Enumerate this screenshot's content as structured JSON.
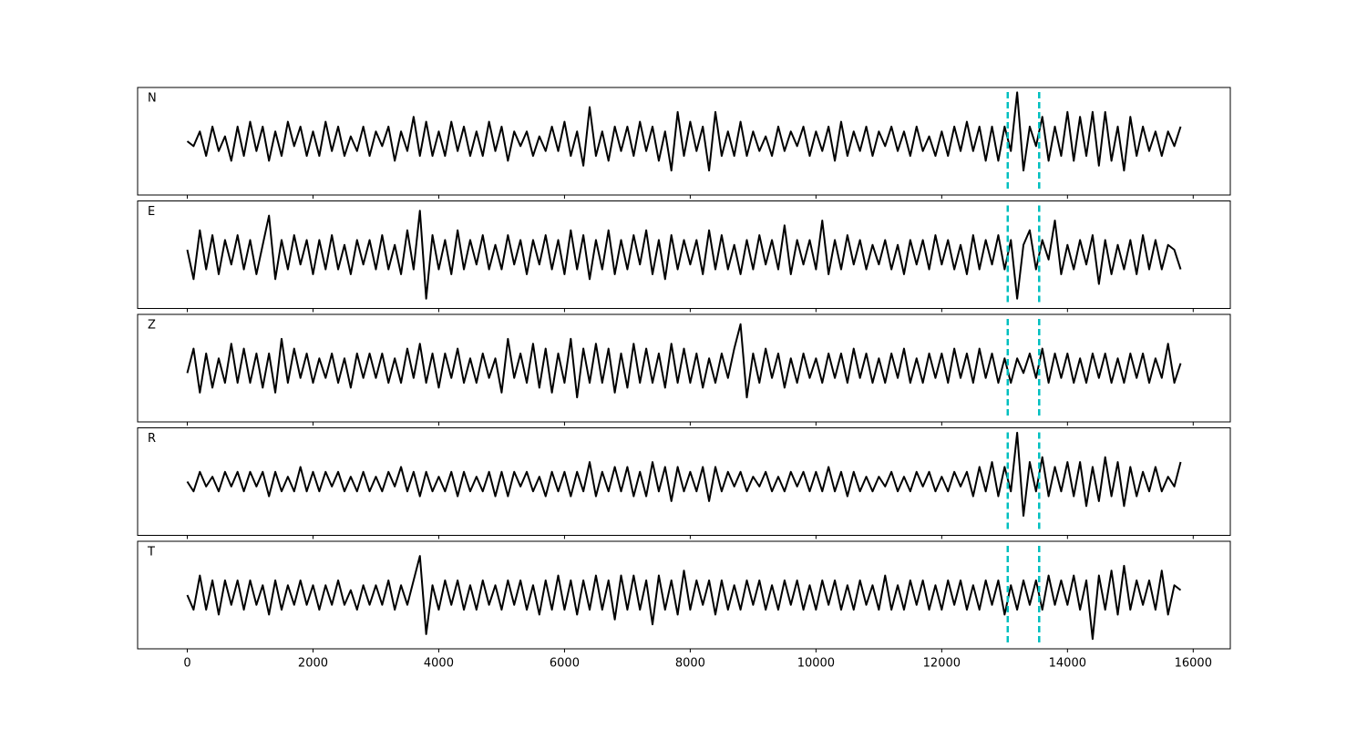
{
  "chart_data": {
    "type": "line",
    "xlim": [
      -790,
      16590
    ],
    "xticks": [
      0,
      2000,
      4000,
      6000,
      8000,
      10000,
      12000,
      14000,
      16000
    ],
    "ylim": [
      -1.1,
      1.1
    ],
    "vlines": [
      13050,
      13550
    ],
    "vline_color": "#00bfbf",
    "x": [
      0,
      100,
      200,
      300,
      400,
      500,
      600,
      700,
      800,
      900,
      1000,
      1100,
      1200,
      1300,
      1400,
      1500,
      1600,
      1700,
      1800,
      1900,
      2000,
      2100,
      2200,
      2300,
      2400,
      2500,
      2600,
      2700,
      2800,
      2900,
      3000,
      3100,
      3200,
      3300,
      3400,
      3500,
      3600,
      3700,
      3800,
      3900,
      4000,
      4100,
      4200,
      4300,
      4400,
      4500,
      4600,
      4700,
      4800,
      4900,
      5000,
      5100,
      5200,
      5300,
      5400,
      5500,
      5600,
      5700,
      5800,
      5900,
      6000,
      6100,
      6200,
      6300,
      6400,
      6500,
      6600,
      6700,
      6800,
      6900,
      7000,
      7100,
      7200,
      7300,
      7400,
      7500,
      7600,
      7700,
      7800,
      7900,
      8000,
      8100,
      8200,
      8300,
      8400,
      8500,
      8600,
      8700,
      8800,
      8900,
      9000,
      9100,
      9200,
      9300,
      9400,
      9500,
      9600,
      9700,
      9800,
      9900,
      10000,
      10100,
      10200,
      10300,
      10400,
      10500,
      10600,
      10700,
      10800,
      10900,
      11000,
      11100,
      11200,
      11300,
      11400,
      11500,
      11600,
      11700,
      11800,
      11900,
      12000,
      12100,
      12200,
      12300,
      12400,
      12500,
      12600,
      12700,
      12800,
      12900,
      13000,
      13100,
      13200,
      13300,
      13400,
      13500,
      13600,
      13700,
      13800,
      13900,
      14000,
      14100,
      14200,
      14300,
      14400,
      14500,
      14600,
      14700,
      14800,
      14900,
      15000,
      15100,
      15200,
      15300,
      15400,
      15500,
      15600,
      15700,
      15800
    ],
    "series": [
      {
        "name": "N",
        "color": "#000000",
        "values": [
          0.0,
          -0.1,
          0.2,
          -0.3,
          0.3,
          -0.2,
          0.1,
          -0.4,
          0.3,
          -0.3,
          0.4,
          -0.2,
          0.3,
          -0.4,
          0.2,
          -0.3,
          0.4,
          -0.1,
          0.3,
          -0.3,
          0.2,
          -0.3,
          0.4,
          -0.2,
          0.3,
          -0.3,
          0.1,
          -0.2,
          0.3,
          -0.3,
          0.2,
          -0.1,
          0.3,
          -0.4,
          0.2,
          -0.2,
          0.5,
          -0.3,
          0.4,
          -0.3,
          0.2,
          -0.3,
          0.4,
          -0.2,
          0.3,
          -0.3,
          0.2,
          -0.3,
          0.4,
          -0.2,
          0.3,
          -0.4,
          0.2,
          -0.1,
          0.2,
          -0.3,
          0.1,
          -0.2,
          0.3,
          -0.2,
          0.4,
          -0.3,
          0.2,
          -0.5,
          0.7,
          -0.3,
          0.2,
          -0.4,
          0.3,
          -0.2,
          0.3,
          -0.3,
          0.4,
          -0.2,
          0.3,
          -0.4,
          0.2,
          -0.6,
          0.6,
          -0.3,
          0.4,
          -0.2,
          0.3,
          -0.6,
          0.6,
          -0.3,
          0.2,
          -0.3,
          0.4,
          -0.3,
          0.2,
          -0.2,
          0.1,
          -0.3,
          0.3,
          -0.2,
          0.2,
          -0.1,
          0.3,
          -0.3,
          0.2,
          -0.2,
          0.3,
          -0.4,
          0.4,
          -0.3,
          0.2,
          -0.2,
          0.3,
          -0.3,
          0.2,
          -0.1,
          0.3,
          -0.2,
          0.2,
          -0.3,
          0.3,
          -0.2,
          0.1,
          -0.3,
          0.2,
          -0.3,
          0.3,
          -0.2,
          0.4,
          -0.2,
          0.3,
          -0.4,
          0.3,
          -0.4,
          0.3,
          -0.2,
          1.0,
          -0.6,
          0.3,
          -0.1,
          0.5,
          -0.4,
          0.3,
          -0.3,
          0.6,
          -0.4,
          0.5,
          -0.3,
          0.6,
          -0.5,
          0.6,
          -0.4,
          0.3,
          -0.6,
          0.5,
          -0.3,
          0.3,
          -0.2,
          0.2,
          -0.3,
          0.2,
          -0.1,
          0.3
        ]
      },
      {
        "name": "E",
        "color": "#000000",
        "values": [
          0.1,
          -0.5,
          0.5,
          -0.3,
          0.4,
          -0.4,
          0.3,
          -0.2,
          0.4,
          -0.3,
          0.3,
          -0.4,
          0.2,
          0.8,
          -0.5,
          0.3,
          -0.3,
          0.4,
          -0.2,
          0.3,
          -0.4,
          0.3,
          -0.3,
          0.4,
          -0.3,
          0.2,
          -0.4,
          0.3,
          -0.2,
          0.3,
          -0.3,
          0.4,
          -0.3,
          0.2,
          -0.4,
          0.5,
          -0.3,
          0.9,
          -0.9,
          0.4,
          -0.3,
          0.3,
          -0.4,
          0.5,
          -0.3,
          0.3,
          -0.2,
          0.4,
          -0.3,
          0.2,
          -0.3,
          0.4,
          -0.2,
          0.3,
          -0.4,
          0.3,
          -0.2,
          0.4,
          -0.3,
          0.3,
          -0.4,
          0.5,
          -0.3,
          0.4,
          -0.5,
          0.3,
          -0.3,
          0.5,
          -0.4,
          0.3,
          -0.3,
          0.4,
          -0.2,
          0.5,
          -0.4,
          0.3,
          -0.5,
          0.4,
          -0.3,
          0.3,
          -0.2,
          0.3,
          -0.4,
          0.5,
          -0.3,
          0.4,
          -0.3,
          0.2,
          -0.4,
          0.3,
          -0.3,
          0.4,
          -0.2,
          0.3,
          -0.3,
          0.6,
          -0.4,
          0.3,
          -0.2,
          0.3,
          -0.3,
          0.7,
          -0.4,
          0.3,
          -0.3,
          0.4,
          -0.2,
          0.3,
          -0.3,
          0.2,
          -0.2,
          0.3,
          -0.3,
          0.2,
          -0.4,
          0.3,
          -0.2,
          0.3,
          -0.3,
          0.4,
          -0.2,
          0.3,
          -0.3,
          0.2,
          -0.4,
          0.4,
          -0.3,
          0.3,
          -0.2,
          0.4,
          -0.3,
          0.3,
          -0.9,
          0.2,
          0.5,
          -0.3,
          0.3,
          -0.1,
          0.7,
          -0.4,
          0.2,
          -0.3,
          0.3,
          -0.2,
          0.4,
          -0.6,
          0.3,
          -0.4,
          0.2,
          -0.3,
          0.3,
          -0.4,
          0.4,
          -0.3,
          0.3,
          -0.3,
          0.2,
          0.1,
          -0.3
        ]
      },
      {
        "name": "Z",
        "color": "#000000",
        "values": [
          -0.1,
          0.4,
          -0.5,
          0.3,
          -0.4,
          0.2,
          -0.3,
          0.5,
          -0.3,
          0.4,
          -0.3,
          0.3,
          -0.4,
          0.3,
          -0.5,
          0.6,
          -0.3,
          0.4,
          -0.2,
          0.3,
          -0.3,
          0.2,
          -0.2,
          0.3,
          -0.3,
          0.2,
          -0.4,
          0.3,
          -0.2,
          0.3,
          -0.2,
          0.3,
          -0.3,
          0.2,
          -0.3,
          0.4,
          -0.2,
          0.5,
          -0.3,
          0.3,
          -0.4,
          0.3,
          -0.2,
          0.4,
          -0.3,
          0.2,
          -0.3,
          0.3,
          -0.2,
          0.2,
          -0.5,
          0.6,
          -0.2,
          0.3,
          -0.3,
          0.5,
          -0.4,
          0.4,
          -0.5,
          0.3,
          -0.3,
          0.6,
          -0.6,
          0.4,
          -0.3,
          0.5,
          -0.3,
          0.4,
          -0.5,
          0.3,
          -0.4,
          0.5,
          -0.3,
          0.4,
          -0.3,
          0.3,
          -0.4,
          0.5,
          -0.3,
          0.4,
          -0.3,
          0.3,
          -0.4,
          0.2,
          -0.3,
          0.3,
          -0.2,
          0.4,
          0.9,
          -0.6,
          0.3,
          -0.3,
          0.4,
          -0.2,
          0.3,
          -0.4,
          0.2,
          -0.3,
          0.3,
          -0.2,
          0.2,
          -0.3,
          0.3,
          -0.2,
          0.3,
          -0.3,
          0.4,
          -0.2,
          0.3,
          -0.3,
          0.2,
          -0.3,
          0.3,
          -0.2,
          0.4,
          -0.3,
          0.2,
          -0.3,
          0.3,
          -0.2,
          0.3,
          -0.3,
          0.4,
          -0.2,
          0.3,
          -0.3,
          0.4,
          -0.2,
          0.3,
          -0.3,
          0.2,
          -0.3,
          0.2,
          -0.1,
          0.3,
          -0.2,
          0.4,
          -0.3,
          0.3,
          -0.2,
          0.3,
          -0.3,
          0.2,
          -0.3,
          0.3,
          -0.2,
          0.3,
          -0.3,
          0.2,
          -0.3,
          0.3,
          -0.2,
          0.3,
          -0.3,
          0.2,
          -0.2,
          0.5,
          -0.3,
          0.1
        ]
      },
      {
        "name": "R",
        "color": "#000000",
        "values": [
          0.0,
          -0.2,
          0.2,
          -0.1,
          0.1,
          -0.2,
          0.2,
          -0.1,
          0.2,
          -0.2,
          0.2,
          -0.1,
          0.2,
          -0.3,
          0.2,
          -0.2,
          0.1,
          -0.2,
          0.3,
          -0.2,
          0.2,
          -0.2,
          0.2,
          -0.1,
          0.2,
          -0.2,
          0.1,
          -0.2,
          0.2,
          -0.2,
          0.1,
          -0.2,
          0.2,
          -0.1,
          0.3,
          -0.2,
          0.2,
          -0.3,
          0.2,
          -0.2,
          0.1,
          -0.2,
          0.2,
          -0.3,
          0.2,
          -0.2,
          0.1,
          -0.2,
          0.2,
          -0.3,
          0.2,
          -0.3,
          0.2,
          -0.1,
          0.2,
          -0.2,
          0.1,
          -0.3,
          0.2,
          -0.2,
          0.2,
          -0.3,
          0.2,
          -0.2,
          0.4,
          -0.3,
          0.2,
          -0.2,
          0.3,
          -0.2,
          0.3,
          -0.3,
          0.2,
          -0.3,
          0.4,
          -0.2,
          0.3,
          -0.4,
          0.3,
          -0.2,
          0.2,
          -0.2,
          0.3,
          -0.4,
          0.3,
          -0.2,
          0.2,
          -0.1,
          0.2,
          -0.2,
          0.1,
          -0.1,
          0.2,
          -0.2,
          0.1,
          -0.2,
          0.2,
          -0.1,
          0.2,
          -0.2,
          0.2,
          -0.2,
          0.3,
          -0.2,
          0.2,
          -0.3,
          0.2,
          -0.2,
          0.1,
          -0.2,
          0.1,
          -0.1,
          0.2,
          -0.2,
          0.1,
          -0.2,
          0.2,
          -0.1,
          0.2,
          -0.2,
          0.1,
          -0.2,
          0.2,
          -0.1,
          0.2,
          -0.3,
          0.3,
          -0.2,
          0.4,
          -0.3,
          0.3,
          -0.2,
          1.0,
          -0.7,
          0.4,
          -0.2,
          0.5,
          -0.3,
          0.3,
          -0.2,
          0.4,
          -0.3,
          0.4,
          -0.5,
          0.3,
          -0.4,
          0.5,
          -0.3,
          0.4,
          -0.5,
          0.3,
          -0.3,
          0.2,
          -0.2,
          0.3,
          -0.2,
          0.1,
          -0.1,
          0.4
        ]
      },
      {
        "name": "T",
        "color": "#000000",
        "values": [
          0.0,
          -0.3,
          0.4,
          -0.3,
          0.3,
          -0.4,
          0.3,
          -0.2,
          0.3,
          -0.3,
          0.3,
          -0.2,
          0.2,
          -0.4,
          0.3,
          -0.3,
          0.2,
          -0.2,
          0.3,
          -0.2,
          0.2,
          -0.3,
          0.2,
          -0.2,
          0.3,
          -0.2,
          0.1,
          -0.3,
          0.2,
          -0.2,
          0.2,
          -0.2,
          0.3,
          -0.3,
          0.2,
          -0.2,
          0.3,
          0.8,
          -0.8,
          0.2,
          -0.3,
          0.3,
          -0.2,
          0.3,
          -0.3,
          0.2,
          -0.3,
          0.3,
          -0.2,
          0.2,
          -0.3,
          0.3,
          -0.2,
          0.3,
          -0.3,
          0.2,
          -0.4,
          0.3,
          -0.3,
          0.4,
          -0.3,
          0.3,
          -0.4,
          0.3,
          -0.3,
          0.4,
          -0.3,
          0.3,
          -0.5,
          0.4,
          -0.3,
          0.4,
          -0.3,
          0.3,
          -0.6,
          0.4,
          -0.3,
          0.3,
          -0.4,
          0.5,
          -0.3,
          0.3,
          -0.2,
          0.3,
          -0.4,
          0.3,
          -0.3,
          0.2,
          -0.3,
          0.3,
          -0.2,
          0.3,
          -0.3,
          0.2,
          -0.3,
          0.3,
          -0.2,
          0.3,
          -0.3,
          0.2,
          -0.3,
          0.3,
          -0.2,
          0.3,
          -0.3,
          0.2,
          -0.3,
          0.3,
          -0.2,
          0.2,
          -0.3,
          0.4,
          -0.3,
          0.2,
          -0.3,
          0.3,
          -0.2,
          0.3,
          -0.3,
          0.2,
          -0.3,
          0.3,
          -0.2,
          0.3,
          -0.3,
          0.2,
          -0.3,
          0.3,
          -0.2,
          0.3,
          -0.4,
          0.2,
          -0.3,
          0.3,
          -0.2,
          0.3,
          -0.3,
          0.4,
          -0.2,
          0.3,
          -0.2,
          0.4,
          -0.3,
          0.3,
          -0.9,
          0.4,
          -0.3,
          0.5,
          -0.4,
          0.6,
          -0.3,
          0.3,
          -0.2,
          0.3,
          -0.3,
          0.5,
          -0.4,
          0.2,
          0.1
        ]
      }
    ]
  }
}
